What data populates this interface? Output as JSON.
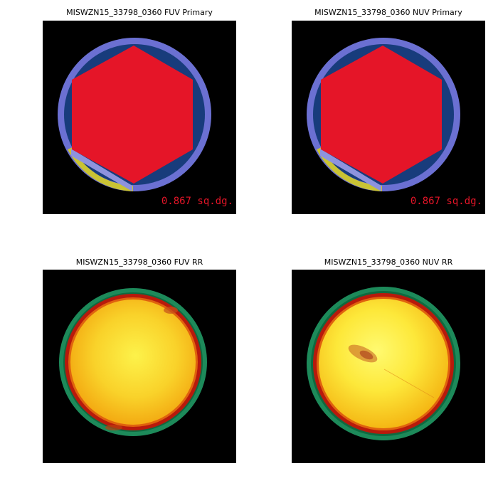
{
  "panels": {
    "fuv_primary": {
      "title": "MISWZN15_33798_0360 FUV Primary",
      "area_label": "0.867 sq.dg."
    },
    "nuv_primary": {
      "title": "MISWZN15_33798_0360 NUV Primary",
      "area_label": "0.867 sq.dg."
    },
    "fuv_rr": {
      "title": "MISWZN15_33798_0360 FUV RR"
    },
    "nuv_rr": {
      "title": "MISWZN15_33798_0360 NUV RR"
    }
  },
  "colors": {
    "background": "#000000",
    "outer_ring": "#6b70d2",
    "dark_blue": "#183c7c",
    "hexagon": "#e51528",
    "light_wedge": "#8e93de",
    "yellow_edge": "#c9c334",
    "area_label": "#e51528",
    "rr_green": "#1d8a5a",
    "rr_red": "#b81a0c",
    "rr_orange": "#f2a20d",
    "rr_yellow": "#fdf24a"
  },
  "icons": {
    "primary_panel": "footprint-hexagon-map",
    "rr_panel": "relative-response-map"
  }
}
